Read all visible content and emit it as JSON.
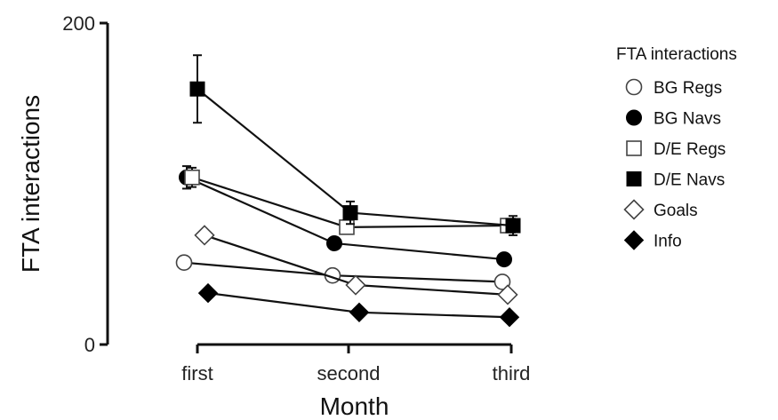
{
  "chart_data": {
    "type": "line",
    "xlabel": "Month",
    "ylabel": "FTA interactions",
    "categories": [
      "first",
      "second",
      "third"
    ],
    "ylim": [
      0,
      200
    ],
    "yticks": [
      "0",
      "200"
    ],
    "grid": false,
    "legend": {
      "title": "FTA interactions",
      "position": "right"
    },
    "series": [
      {
        "name": "BG Regs",
        "marker": "circle",
        "filled": false,
        "values": [
          51,
          43,
          39
        ],
        "errors": [
          0,
          0,
          0
        ]
      },
      {
        "name": "BG Navs",
        "marker": "circle",
        "filled": true,
        "values": [
          104,
          63,
          53
        ],
        "errors": [
          7,
          0,
          0
        ]
      },
      {
        "name": "D/E Regs",
        "marker": "square",
        "filled": false,
        "values": [
          104,
          73,
          74
        ],
        "errors": [
          6,
          0,
          4
        ]
      },
      {
        "name": "D/E Navs",
        "marker": "square",
        "filled": true,
        "values": [
          159,
          82,
          74
        ],
        "errors": [
          21,
          7,
          6
        ]
      },
      {
        "name": "Goals",
        "marker": "diamond",
        "filled": false,
        "values": [
          68,
          37,
          31
        ],
        "errors": [
          0,
          0,
          0
        ]
      },
      {
        "name": "Info",
        "marker": "diamond",
        "filled": true,
        "values": [
          32,
          20,
          17
        ],
        "errors": [
          0,
          0,
          0
        ]
      }
    ]
  }
}
